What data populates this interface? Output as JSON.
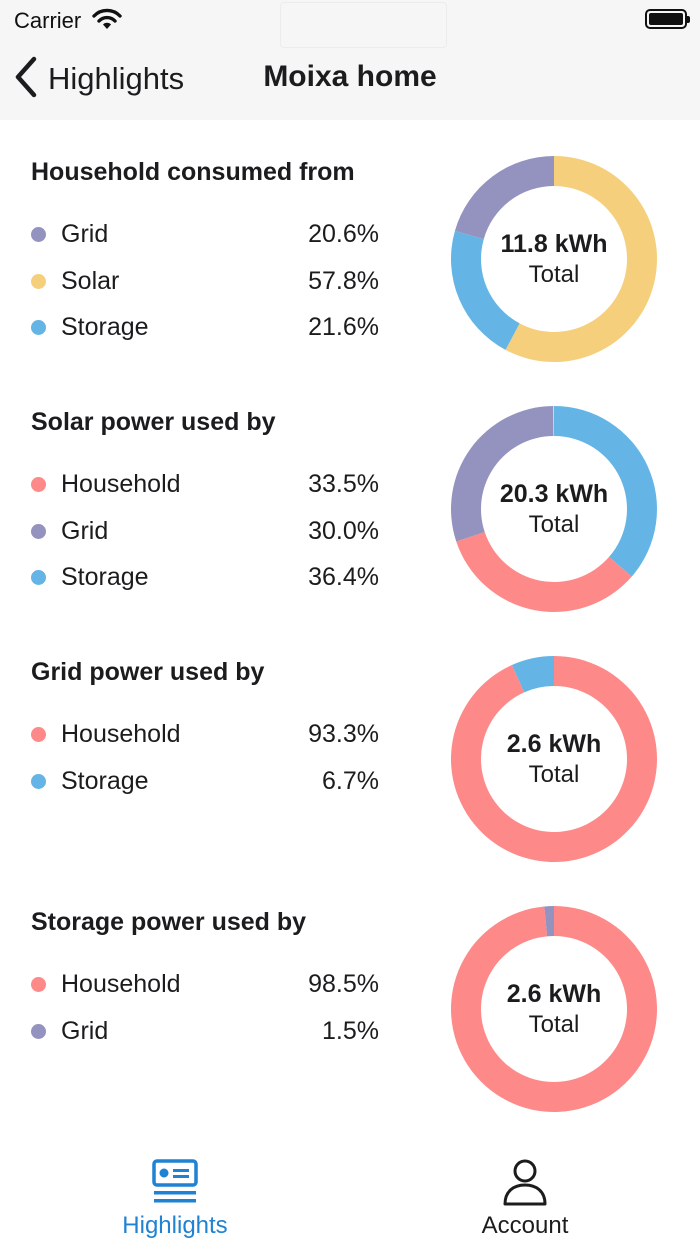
{
  "status_bar": {
    "carrier": "Carrier"
  },
  "nav": {
    "back_label": "Highlights",
    "title": "Moixa home"
  },
  "colors": {
    "grid": "#9493bf",
    "solar": "#f5cf7b",
    "storage": "#64b5e6",
    "household": "#fe8989",
    "active_tab": "#1f82d2"
  },
  "sections": [
    {
      "title": "Household consumed from",
      "total": "11.8 kWh",
      "total_label": "Total",
      "items": [
        {
          "label": "Grid",
          "value": "20.6%",
          "pct": 20.6,
          "color": "#9493bf"
        },
        {
          "label": "Solar",
          "value": "57.8%",
          "pct": 57.8,
          "color": "#f5cf7b"
        },
        {
          "label": "Storage",
          "value": "21.6%",
          "pct": 21.6,
          "color": "#64b5e6"
        }
      ],
      "ring_order": [
        1,
        2,
        0
      ]
    },
    {
      "title": "Solar power used by",
      "total": "20.3 kWh",
      "total_label": "Total",
      "items": [
        {
          "label": "Household",
          "value": "33.5%",
          "pct": 33.5,
          "color": "#fe8989"
        },
        {
          "label": "Grid",
          "value": "30.0%",
          "pct": 30.0,
          "color": "#9493bf"
        },
        {
          "label": "Storage",
          "value": "36.4%",
          "pct": 36.4,
          "color": "#64b5e6"
        }
      ],
      "ring_order": [
        2,
        0,
        1
      ]
    },
    {
      "title": "Grid power used by",
      "total": "2.6 kWh",
      "total_label": "Total",
      "items": [
        {
          "label": "Household",
          "value": "93.3%",
          "pct": 93.3,
          "color": "#fe8989"
        },
        {
          "label": "Storage",
          "value": "6.7%",
          "pct": 6.7,
          "color": "#64b5e6"
        }
      ],
      "ring_order": [
        0,
        1
      ]
    },
    {
      "title": "Storage power used by",
      "total": "2.6 kWh",
      "total_label": "Total",
      "items": [
        {
          "label": "Household",
          "value": "98.5%",
          "pct": 98.5,
          "color": "#fe8989"
        },
        {
          "label": "Grid",
          "value": "1.5%",
          "pct": 1.5,
          "color": "#9493bf"
        }
      ],
      "ring_order": [
        0,
        1
      ]
    }
  ],
  "tabs": [
    {
      "label": "Highlights",
      "icon": "highlights-icon",
      "active": true
    },
    {
      "label": "Account",
      "icon": "account-icon",
      "active": false
    }
  ]
}
